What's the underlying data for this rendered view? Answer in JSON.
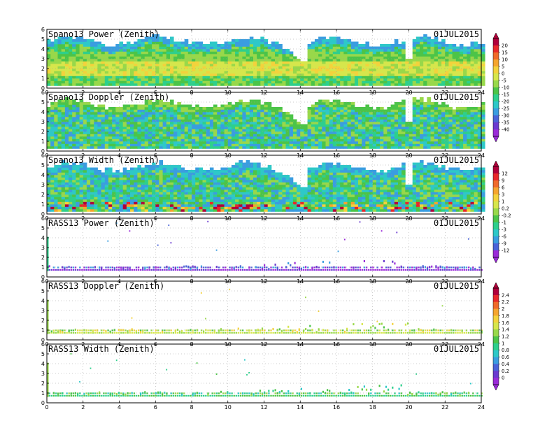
{
  "figure": {
    "date": "01JUL2015"
  },
  "chart_data": [
    {
      "type": "heatmap",
      "title": "Spano13 Power (Zenith)",
      "date": "01JUL2015",
      "xlim": [
        0,
        24
      ],
      "ylim": [
        0,
        6
      ],
      "xticks": [
        "0",
        "2",
        "4",
        "6",
        "8",
        "10",
        "12",
        "14",
        "16",
        "18",
        "20",
        "22",
        "24"
      ],
      "yticks": [
        "0",
        "1",
        "2",
        "3",
        "4",
        "5",
        "6"
      ],
      "grid": "dotted"
    },
    {
      "type": "heatmap",
      "title": "Spano13 Doppler (Zenith)",
      "date": "01JUL2015",
      "xlim": [
        0,
        24
      ],
      "ylim": [
        0,
        6
      ],
      "xticks": [
        "0",
        "2",
        "4",
        "6",
        "8",
        "10",
        "12",
        "14",
        "16",
        "18",
        "20",
        "22",
        "24"
      ],
      "yticks": [
        "0",
        "1",
        "2",
        "3",
        "4",
        "5",
        "6"
      ],
      "grid": "dotted"
    },
    {
      "type": "heatmap",
      "title": "Spano13 Width (Zenith)",
      "date": "01JUL2015",
      "xlim": [
        0,
        24
      ],
      "ylim": [
        0,
        6
      ],
      "xticks": [
        "0",
        "2",
        "4",
        "6",
        "8",
        "10",
        "12",
        "14",
        "16",
        "18",
        "20",
        "22",
        "24"
      ],
      "yticks": [
        "0",
        "1",
        "2",
        "3",
        "4",
        "5",
        "6"
      ],
      "grid": "dotted"
    },
    {
      "type": "heatmap",
      "title": "RASS13 Power (Zenith)",
      "date": "01JUL2015",
      "xlim": [
        0,
        24
      ],
      "ylim": [
        0,
        6
      ],
      "xticks": [
        "0",
        "2",
        "4",
        "6",
        "8",
        "10",
        "12",
        "14",
        "16",
        "18",
        "20",
        "22",
        "24"
      ],
      "yticks": [
        "0",
        "1",
        "2",
        "3",
        "4",
        "5",
        "6"
      ],
      "grid": "dotted"
    },
    {
      "type": "heatmap",
      "title": "RASS13 Doppler (Zenith)",
      "date": "01JUL2015",
      "xlim": [
        0,
        24
      ],
      "ylim": [
        0,
        6
      ],
      "xticks": [
        "0",
        "2",
        "4",
        "6",
        "8",
        "10",
        "12",
        "14",
        "16",
        "18",
        "20",
        "22",
        "24"
      ],
      "yticks": [
        "0",
        "1",
        "2",
        "3",
        "4",
        "5",
        "6"
      ],
      "grid": "dotted"
    },
    {
      "type": "heatmap",
      "title": "RASS13 Width (Zenith)",
      "date": "01JUL2015",
      "xlim": [
        0,
        24
      ],
      "ylim": [
        0,
        6
      ],
      "xticks": [
        "0",
        "2",
        "4",
        "6",
        "8",
        "10",
        "12",
        "14",
        "16",
        "18",
        "20",
        "22",
        "24"
      ],
      "yticks": [
        "0",
        "1",
        "2",
        "3",
        "4",
        "5",
        "6"
      ],
      "grid": "dotted"
    }
  ],
  "colorbars": [
    {
      "labels": [
        "20",
        "15",
        "10",
        "5",
        "0",
        "-5",
        "-10",
        "-15",
        "-20",
        "-25",
        "-30",
        "-35",
        "-40"
      ],
      "colors": [
        "#b0003a",
        "#e8282a",
        "#f06a2a",
        "#f5a52e",
        "#f3d23c",
        "#d6e64c",
        "#98d84a",
        "#4cc448",
        "#2ecf8c",
        "#2ec8c8",
        "#3a9de0",
        "#4a63d8",
        "#6a3ad0",
        "#9a2ad8"
      ]
    },
    {
      "labels": [
        "12",
        "9",
        "6",
        "3",
        "1",
        "0.2",
        "-0.2",
        "-1",
        "-3",
        "-6",
        "-9",
        "-12"
      ],
      "colors": [
        "#b0003a",
        "#e8282a",
        "#f06a2a",
        "#f5a52e",
        "#f3d23c",
        "#d6e64c",
        "#98d84a",
        "#4cc448",
        "#2ecf8c",
        "#2ec8c8",
        "#3a9de0",
        "#4a63d8",
        "#9a2ad8"
      ]
    },
    {
      "labels": [
        "2.4",
        "2.2",
        "2",
        "1.8",
        "1.6",
        "1.4",
        "1.2",
        "1",
        "0.8",
        "0.6",
        "0.4",
        "0.2",
        "0"
      ],
      "colors": [
        "#b0003a",
        "#e8282a",
        "#f06a2a",
        "#f5a52e",
        "#f3d23c",
        "#d6e64c",
        "#98d84a",
        "#4cc448",
        "#2ecf8c",
        "#2ec8c8",
        "#3a9de0",
        "#4a63d8",
        "#6a3ad0",
        "#9a2ad8"
      ]
    }
  ]
}
